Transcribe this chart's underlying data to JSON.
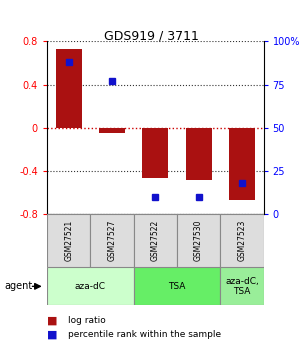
{
  "title": "GDS919 / 3711",
  "samples": [
    "GSM27521",
    "GSM27527",
    "GSM27522",
    "GSM27530",
    "GSM27523"
  ],
  "log_ratios": [
    0.73,
    -0.05,
    -0.47,
    -0.49,
    -0.67
  ],
  "percentile_ranks": [
    88,
    77,
    10,
    10,
    18
  ],
  "ylim": [
    -0.8,
    0.8
  ],
  "yticks_left": [
    -0.8,
    -0.4,
    0.0,
    0.4,
    0.8
  ],
  "yticks_right": [
    0,
    25,
    50,
    75,
    100
  ],
  "bar_color": "#aa1111",
  "percentile_color": "#1111cc",
  "agent_groups": [
    {
      "label": "aza-dC",
      "start": 0,
      "end": 2,
      "color": "#ccffcc"
    },
    {
      "label": "TSA",
      "start": 2,
      "end": 4,
      "color": "#66ee66"
    },
    {
      "label": "aza-dC,\nTSA",
      "start": 4,
      "end": 5,
      "color": "#99ee99"
    }
  ],
  "background_color": "#ffffff",
  "zero_line_color": "#cc0000",
  "dotted_line_color": "#333333"
}
